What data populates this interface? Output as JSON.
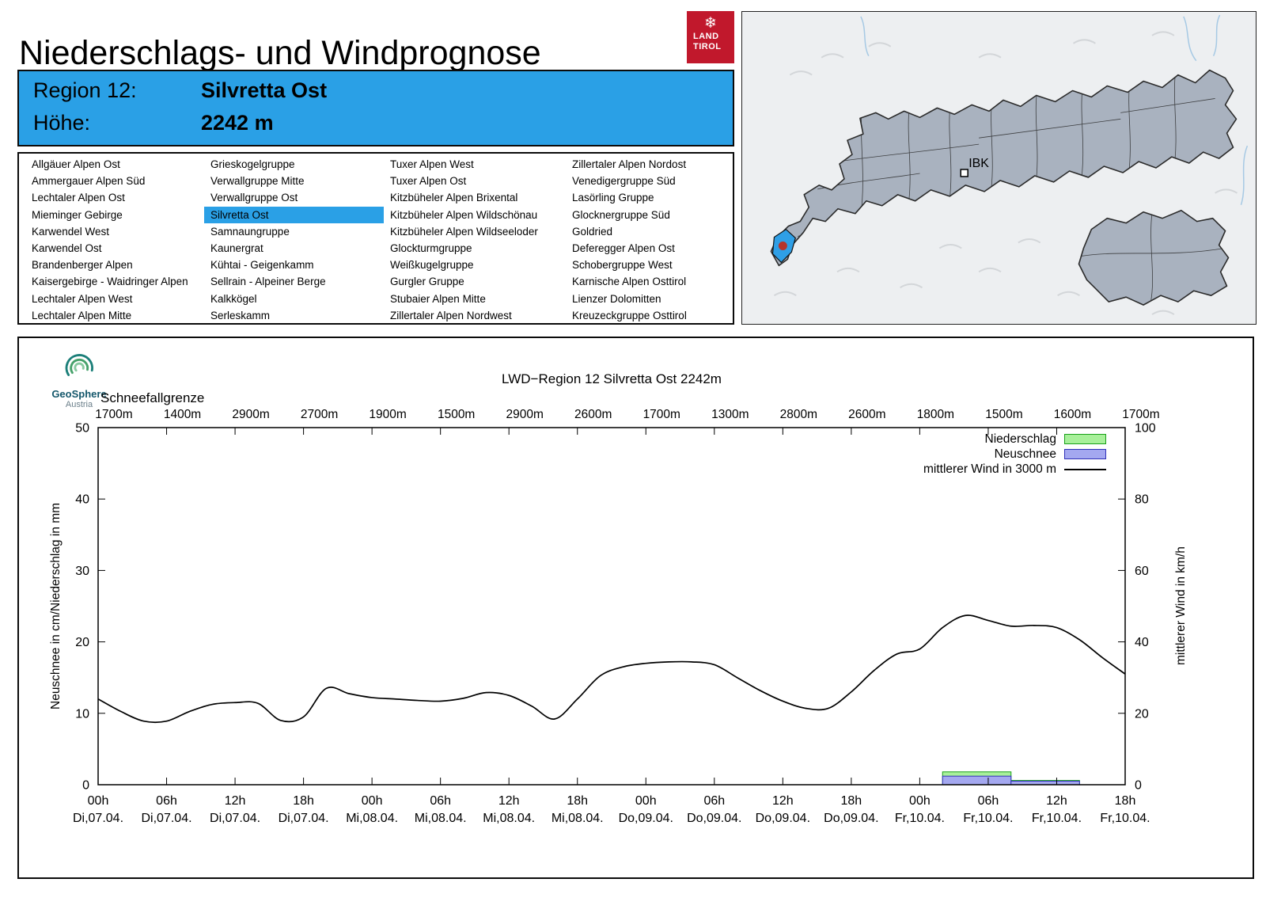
{
  "header": {
    "title": "Niederschlags- und Windprognose"
  },
  "brand": {
    "snowflake": "❄",
    "land_logo_line1": "LAND",
    "land_logo_line2": "TIROL",
    "logo_color": "#c1182c"
  },
  "region_box": {
    "region_label": "Region 12:",
    "region_name": "Silvretta Ost",
    "altitude_label": "Höhe:",
    "altitude_value": "2242 m",
    "background_color": "#2aa0e6"
  },
  "region_list": {
    "selected": "Silvretta Ost",
    "highlight_color": "#2aa0e6",
    "columns": [
      [
        "Allgäuer Alpen Ost",
        "Ammergauer Alpen Süd",
        "Lechtaler Alpen Ost",
        "Mieminger Gebirge",
        "Karwendel West",
        "Karwendel Ost",
        "Brandenberger Alpen",
        "Kaisergebirge - Waidringer Alpen",
        "Lechtaler Alpen West",
        "Lechtaler Alpen Mitte"
      ],
      [
        "Grieskogelgruppe",
        "Verwallgruppe Mitte",
        "Verwallgruppe Ost",
        "Silvretta Ost",
        "Samnaungruppe",
        "Kaunergrat",
        "Kühtai - Geigenkamm",
        "Sellrain - Alpeiner Berge",
        "Kalkkögel",
        "Serleskamm"
      ],
      [
        "Tuxer Alpen West",
        "Tuxer Alpen Ost",
        "Kitzbüheler Alpen Brixental",
        "Kitzbüheler Alpen Wildschönau",
        "Kitzbüheler Alpen Wildseeloder",
        "Glockturmgruppe",
        "Weißkugelgruppe",
        "Gurgler Gruppe",
        "Stubaier Alpen Mitte",
        "Zillertaler Alpen Nordwest"
      ],
      [
        "Zillertaler Alpen Nordost",
        "Venedigergruppe Süd",
        "Lasörling Gruppe",
        "Glocknergruppe Süd",
        "Goldried",
        "Deferegger Alpen Ost",
        "Schobergruppe West",
        "Karnische Alpen Osttirol",
        "Lienzer Dolomitten",
        "Kreuzeckgruppe Osttirol"
      ]
    ]
  },
  "map": {
    "city_label": "IBK",
    "selected_region_color": "#2f9fe6",
    "marker_color": "#b5342c"
  },
  "chart": {
    "logo_name": "GeoSphere",
    "logo_sub": "Austria"
  },
  "chart_data": {
    "type": "line+bar",
    "title": "LWD−Region 12 Silvretta Ost 2242m",
    "snowline_label": "Schneefallgrenze",
    "snowline_values": [
      "1700m",
      "1400m",
      "2900m",
      "2700m",
      "1900m",
      "1500m",
      "2900m",
      "2600m",
      "1700m",
      "1300m",
      "2800m",
      "2600m",
      "1800m",
      "1500m",
      "1600m",
      "1700m"
    ],
    "ylabel_left": "Neuschnee in cm/Niederschlag in mm",
    "ylim_left": [
      0,
      50
    ],
    "yticks_left": [
      0,
      10,
      20,
      30,
      40,
      50
    ],
    "ylabel_right": "mittlerer Wind in km/h",
    "ylim_right": [
      0,
      100
    ],
    "yticks_right": [
      0,
      20,
      40,
      60,
      80,
      100
    ],
    "x_hours_range": [
      0,
      90
    ],
    "x_tick_step_h": 6,
    "x_ticks": [
      {
        "hour": "00h",
        "date": "Di,07.04."
      },
      {
        "hour": "06h",
        "date": "Di,07.04."
      },
      {
        "hour": "12h",
        "date": "Di,07.04."
      },
      {
        "hour": "18h",
        "date": "Di,07.04."
      },
      {
        "hour": "00h",
        "date": "Mi,08.04."
      },
      {
        "hour": "06h",
        "date": "Mi,08.04."
      },
      {
        "hour": "12h",
        "date": "Mi,08.04."
      },
      {
        "hour": "18h",
        "date": "Mi,08.04."
      },
      {
        "hour": "00h",
        "date": "Do,09.04."
      },
      {
        "hour": "06h",
        "date": "Do,09.04."
      },
      {
        "hour": "12h",
        "date": "Do,09.04."
      },
      {
        "hour": "18h",
        "date": "Do,09.04."
      },
      {
        "hour": "00h",
        "date": "Fr,10.04."
      },
      {
        "hour": "06h",
        "date": "Fr,10.04."
      },
      {
        "hour": "12h",
        "date": "Fr,10.04."
      },
      {
        "hour": "18h",
        "date": "Fr,10.04."
      }
    ],
    "legend": [
      {
        "label": "Niederschlag",
        "swatch": "box",
        "fill": "#a8f09a",
        "stroke": "#18a018"
      },
      {
        "label": "Neuschnee",
        "swatch": "box",
        "fill": "#a4a8f0",
        "stroke": "#3030b8"
      },
      {
        "label": "mittlerer Wind in 3000 m",
        "swatch": "line",
        "stroke": "#000000"
      }
    ],
    "wind_series": {
      "name": "mittlerer Wind in 3000 m",
      "axis": "right",
      "unit": "km/h",
      "x_hours": [
        0,
        2,
        4,
        6,
        8,
        10,
        12,
        14,
        16,
        18,
        20,
        22,
        24,
        26,
        28,
        30,
        32,
        34,
        36,
        38,
        40,
        42,
        44,
        46,
        48,
        50,
        52,
        54,
        56,
        58,
        60,
        62,
        64,
        66,
        68,
        70,
        72,
        74,
        76,
        78,
        80,
        82,
        84,
        86,
        88,
        90
      ],
      "values_kmh": [
        24,
        20.5,
        17.8,
        17.8,
        20.5,
        22.5,
        23,
        22.8,
        18,
        19,
        27,
        25.5,
        24.4,
        24,
        23.6,
        23.4,
        24.2,
        25.8,
        25,
        22,
        18.4,
        24,
        30.5,
        33,
        34,
        34.4,
        34.4,
        33.6,
        30,
        26.4,
        23.4,
        21.4,
        21.4,
        26,
        32,
        36.6,
        38,
        44,
        47.4,
        46,
        44.4,
        44.6,
        44,
        40.6,
        35.6,
        31
      ]
    },
    "precipitation_bars": {
      "name": "Niederschlag",
      "unit": "mm",
      "axis": "left",
      "bars": [
        {
          "from_h": 74,
          "to_h": 80,
          "value": 1.8
        },
        {
          "from_h": 80,
          "to_h": 86,
          "value": 0.6
        }
      ]
    },
    "snow_bars": {
      "name": "Neuschnee",
      "unit": "cm",
      "axis": "left",
      "bars": [
        {
          "from_h": 74,
          "to_h": 80,
          "value": 1.2
        },
        {
          "from_h": 80,
          "to_h": 86,
          "value": 0.5
        }
      ]
    }
  }
}
